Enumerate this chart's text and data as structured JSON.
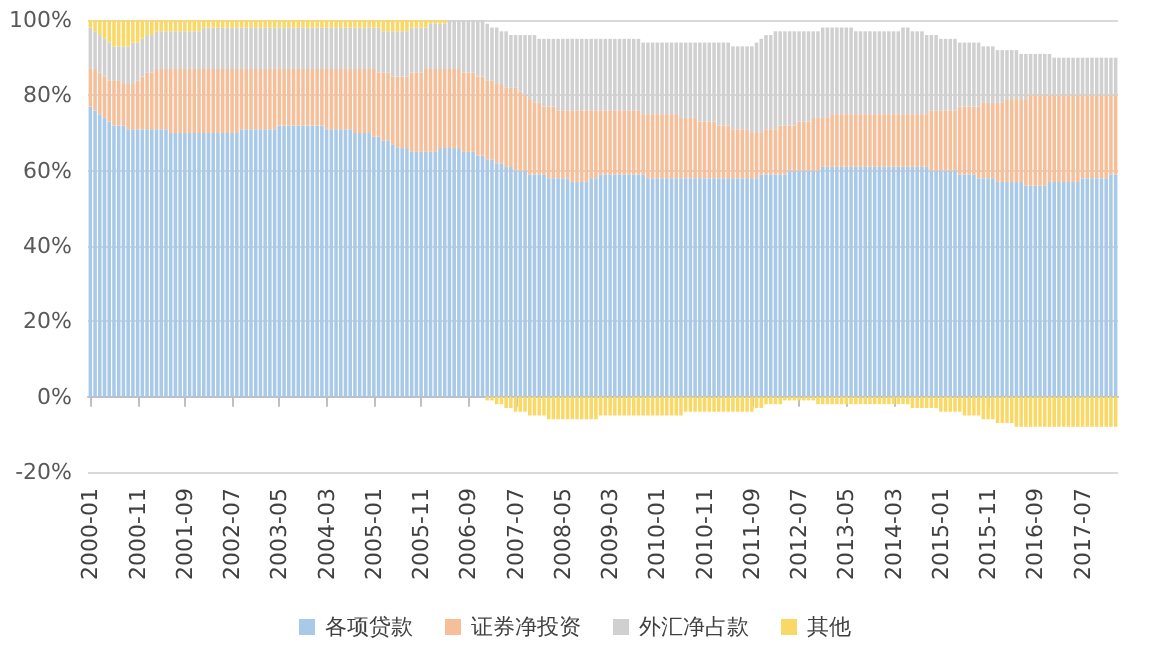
{
  "chart_data": {
    "type": "bar",
    "stacked": true,
    "grid": "y",
    "legend": "bottom",
    "categories": [
      "2000-01",
      null,
      null,
      null,
      null,
      null,
      null,
      null,
      null,
      null,
      "2000-11",
      null,
      null,
      null,
      null,
      null,
      null,
      null,
      null,
      null,
      "2001-09",
      null,
      null,
      null,
      null,
      null,
      null,
      null,
      null,
      null,
      "2002-07",
      null,
      null,
      null,
      null,
      null,
      null,
      null,
      null,
      null,
      "2003-05",
      null,
      null,
      null,
      null,
      null,
      null,
      null,
      null,
      null,
      "2004-03",
      null,
      null,
      null,
      null,
      null,
      null,
      null,
      null,
      null,
      "2005-01",
      null,
      null,
      null,
      null,
      null,
      null,
      null,
      null,
      null,
      "2005-11",
      null,
      null,
      null,
      null,
      null,
      null,
      null,
      null,
      null,
      "2006-09",
      null,
      null,
      null,
      null,
      null,
      null,
      null,
      null,
      null,
      "2007-07",
      null,
      null,
      null,
      null,
      null,
      null,
      null,
      null,
      null,
      "2008-05",
      null,
      null,
      null,
      null,
      null,
      null,
      null,
      null,
      null,
      "2009-03",
      null,
      null,
      null,
      null,
      null,
      null,
      null,
      null,
      null,
      "2010-01",
      null,
      null,
      null,
      null,
      null,
      null,
      null,
      null,
      null,
      "2010-11",
      null,
      null,
      null,
      null,
      null,
      null,
      null,
      null,
      null,
      "2011-09",
      null,
      null,
      null,
      null,
      null,
      null,
      null,
      null,
      null,
      "2012-07",
      null,
      null,
      null,
      null,
      null,
      null,
      null,
      null,
      null,
      "2013-05",
      null,
      null,
      null,
      null,
      null,
      null,
      null,
      null,
      null,
      "2014-03",
      null,
      null,
      null,
      null,
      null,
      null,
      null,
      null,
      null,
      "2015-01",
      null,
      null,
      null,
      null,
      null,
      null,
      null,
      null,
      null,
      "2015-11",
      null,
      null,
      null,
      null,
      null,
      null,
      null,
      null,
      null,
      "2016-09",
      null,
      null,
      null,
      null,
      null,
      null,
      null,
      null,
      null,
      "2017-07",
      null,
      null,
      null,
      null,
      null,
      null,
      null
    ],
    "ylim": [
      -20,
      100
    ],
    "yticks": [
      {
        "value": -20,
        "label": "-20%"
      },
      {
        "value": 0,
        "label": "0%"
      },
      {
        "value": 20,
        "label": "20%"
      },
      {
        "value": 40,
        "label": "40%"
      },
      {
        "value": 60,
        "label": "60%"
      },
      {
        "value": 80,
        "label": "80%"
      },
      {
        "value": 100,
        "label": "100%"
      }
    ],
    "series": [
      {
        "name": "各项贷款",
        "color": "#a9c9e9",
        "values": [
          77,
          76,
          75,
          74,
          73,
          72,
          72,
          72,
          71,
          71,
          71,
          71,
          71,
          71,
          71,
          71,
          71,
          70,
          70,
          70,
          70,
          70,
          70,
          70,
          70,
          70,
          70,
          70,
          70,
          70,
          70,
          70,
          71,
          71,
          71,
          71,
          71,
          71,
          71,
          71,
          72,
          72,
          72,
          72,
          72,
          72,
          72,
          72,
          72,
          72,
          71,
          71,
          71,
          71,
          71,
          71,
          70,
          70,
          70,
          70,
          69,
          69,
          68,
          68,
          67,
          66,
          66,
          66,
          65,
          65,
          65,
          65,
          65,
          65,
          66,
          66,
          66,
          66,
          66,
          65,
          65,
          65,
          64,
          64,
          63,
          63,
          62,
          62,
          61,
          61,
          60,
          60,
          60,
          59,
          59,
          59,
          59,
          58,
          58,
          58,
          58,
          58,
          57,
          57,
          57,
          57,
          58,
          58,
          59,
          59,
          59,
          59,
          59,
          59,
          59,
          59,
          59,
          59,
          58,
          58,
          58,
          58,
          58,
          58,
          58,
          58,
          58,
          58,
          58,
          58,
          58,
          58,
          58,
          58,
          58,
          58,
          58,
          58,
          58,
          58,
          58,
          58,
          59,
          59,
          59,
          59,
          59,
          59,
          60,
          60,
          60,
          60,
          60,
          60,
          60,
          61,
          61,
          61,
          61,
          61,
          61,
          61,
          61,
          61,
          61,
          61,
          61,
          61,
          61,
          61,
          61,
          61,
          61,
          61,
          61,
          61,
          61,
          61,
          60,
          60,
          60,
          60,
          60,
          60,
          59,
          59,
          59,
          59,
          58,
          58,
          58,
          58,
          57,
          57,
          57,
          57,
          57,
          57,
          56,
          56,
          56,
          56,
          56,
          57,
          57,
          57,
          57,
          57,
          57,
          57,
          58,
          58,
          58,
          58,
          58,
          58,
          59,
          59
        ]
      },
      {
        "name": "证券净投资",
        "color": "#f6bf99",
        "values": [
          10,
          11,
          11,
          11,
          11,
          12,
          12,
          11,
          12,
          12,
          13,
          14,
          15,
          15,
          16,
          16,
          16,
          17,
          17,
          17,
          17,
          17,
          17,
          17,
          17,
          17,
          17,
          17,
          17,
          17,
          17,
          17,
          16,
          16,
          16,
          16,
          16,
          16,
          16,
          16,
          15,
          15,
          15,
          15,
          15,
          15,
          15,
          15,
          15,
          15,
          16,
          16,
          16,
          16,
          16,
          16,
          17,
          17,
          17,
          17,
          18,
          17,
          18,
          18,
          18,
          19,
          19,
          19,
          21,
          21,
          21,
          22,
          22,
          22,
          21,
          21,
          21,
          21,
          21,
          21,
          21,
          21,
          21,
          21,
          21,
          21,
          21,
          21,
          21,
          21,
          22,
          21,
          20,
          20,
          19,
          19,
          18,
          19,
          19,
          18,
          18,
          18,
          19,
          19,
          19,
          19,
          18,
          18,
          17,
          17,
          17,
          17,
          17,
          17,
          17,
          17,
          17,
          16,
          17,
          17,
          17,
          17,
          17,
          17,
          17,
          16,
          16,
          16,
          16,
          15,
          15,
          15,
          15,
          14,
          14,
          14,
          13,
          13,
          13,
          13,
          12,
          12,
          11,
          12,
          12,
          12,
          13,
          13,
          12,
          12,
          13,
          13,
          13,
          14,
          14,
          13,
          13,
          14,
          14,
          14,
          14,
          14,
          14,
          14,
          14,
          14,
          14,
          14,
          14,
          14,
          14,
          14,
          14,
          14,
          14,
          14,
          14,
          14,
          16,
          16,
          16,
          16,
          16,
          16,
          18,
          18,
          18,
          18,
          19,
          20,
          20,
          20,
          21,
          21,
          22,
          22,
          22,
          22,
          23,
          24,
          24,
          24,
          24,
          23,
          23,
          23,
          23,
          23,
          23,
          23,
          22,
          22,
          22,
          22,
          22,
          22,
          21,
          21
        ]
      },
      {
        "name": "外汇净占款",
        "color": "#d0d0d0",
        "values": [
          11,
          10,
          10,
          10,
          10,
          9,
          9,
          10,
          10,
          11,
          10,
          10,
          10,
          10,
          10,
          10,
          10,
          10,
          10,
          10,
          10,
          10,
          10,
          10,
          11,
          11,
          11,
          11,
          11,
          11,
          11,
          11,
          11,
          11,
          11,
          11,
          11,
          11,
          11,
          11,
          11,
          11,
          11,
          11,
          11,
          11,
          11,
          11,
          11,
          11,
          11,
          11,
          11,
          11,
          11,
          11,
          11,
          11,
          11,
          11,
          11,
          12,
          11,
          11,
          12,
          12,
          12,
          12,
          12,
          12,
          12,
          11,
          12,
          12,
          12,
          12,
          13,
          13,
          13,
          14,
          14,
          14,
          15,
          15,
          15,
          14,
          15,
          14,
          15,
          14,
          14,
          15,
          16,
          17,
          18,
          17,
          18,
          18,
          18,
          19,
          19,
          19,
          19,
          19,
          19,
          19,
          19,
          19,
          19,
          19,
          19,
          19,
          19,
          19,
          19,
          19,
          19,
          19,
          19,
          19,
          19,
          19,
          19,
          19,
          19,
          20,
          20,
          20,
          20,
          21,
          21,
          21,
          21,
          22,
          22,
          22,
          22,
          22,
          22,
          22,
          23,
          24,
          25,
          25,
          25,
          26,
          25,
          25,
          25,
          25,
          24,
          24,
          24,
          23,
          23,
          24,
          24,
          23,
          23,
          23,
          23,
          23,
          22,
          22,
          22,
          22,
          22,
          22,
          22,
          22,
          22,
          22,
          23,
          23,
          22,
          22,
          22,
          21,
          20,
          20,
          19,
          19,
          19,
          19,
          17,
          17,
          17,
          17,
          17,
          15,
          15,
          15,
          14,
          14,
          13,
          13,
          13,
          12,
          12,
          11,
          11,
          11,
          11,
          11,
          10,
          10,
          10,
          10,
          10,
          10,
          10,
          10,
          10,
          10,
          10,
          10,
          10,
          10
        ]
      },
      {
        "name": "其他",
        "color": "#fad865",
        "values": [
          2,
          3,
          4,
          5,
          6,
          7,
          7,
          7,
          7,
          6,
          6,
          5,
          4,
          4,
          3,
          3,
          3,
          3,
          3,
          3,
          3,
          3,
          3,
          3,
          2,
          2,
          2,
          2,
          2,
          2,
          2,
          2,
          2,
          2,
          2,
          2,
          2,
          2,
          2,
          2,
          2,
          2,
          2,
          2,
          2,
          2,
          2,
          2,
          2,
          2,
          2,
          2,
          2,
          2,
          2,
          2,
          2,
          2,
          2,
          2,
          2,
          2,
          3,
          3,
          3,
          3,
          3,
          3,
          2,
          2,
          2,
          2,
          1,
          1,
          1,
          1,
          0,
          0,
          0,
          0,
          0,
          0,
          0,
          0,
          -1,
          -1,
          -2,
          -2,
          -3,
          -3,
          -4,
          -4,
          -4,
          -5,
          -5,
          -5,
          -5,
          -6,
          -6,
          -6,
          -6,
          -6,
          -6,
          -6,
          -6,
          -6,
          -6,
          -6,
          -5,
          -5,
          -5,
          -5,
          -5,
          -5,
          -5,
          -5,
          -5,
          -5,
          -5,
          -5,
          -5,
          -5,
          -5,
          -5,
          -5,
          -5,
          -4,
          -4,
          -4,
          -4,
          -4,
          -4,
          -4,
          -4,
          -4,
          -4,
          -4,
          -4,
          -4,
          -4,
          -4,
          -3,
          -3,
          -2,
          -2,
          -2,
          -2,
          -1,
          -1,
          -1,
          -1,
          -1,
          -1,
          -1,
          -2,
          -2,
          -2,
          -2,
          -2,
          -2,
          -2,
          -2,
          -2,
          -2,
          -2,
          -2,
          -2,
          -2,
          -2,
          -2,
          -2,
          -2,
          -2,
          -2,
          -3,
          -3,
          -3,
          -3,
          -3,
          -3,
          -4,
          -4,
          -4,
          -4,
          -4,
          -5,
          -5,
          -5,
          -5,
          -6,
          -6,
          -6,
          -7,
          -7,
          -7,
          -7,
          -8,
          -8,
          -8,
          -8,
          -8,
          -8,
          -8,
          -8,
          -8,
          -8,
          -8,
          -8,
          -8,
          -8,
          -8,
          -8,
          -8,
          -8,
          -8,
          -8,
          -8,
          -8
        ]
      }
    ]
  }
}
